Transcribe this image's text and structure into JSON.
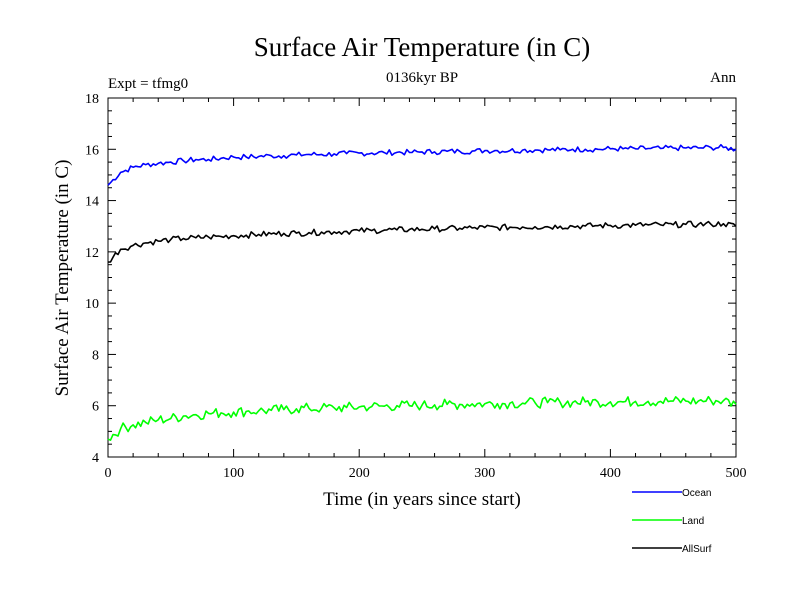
{
  "header": {
    "title": "Surface Air Temperature (in C)",
    "subtitle": "0136kyr BP",
    "left_label": "Expt = tfmg0",
    "right_label": "Ann"
  },
  "chart_data": {
    "type": "line",
    "title": "Surface Air Temperature (in C)",
    "subtitle": "0136kyr BP",
    "xlabel": "Time (in years since start)",
    "ylabel": "Surface Air Temperature (in C)",
    "xlim": [
      0,
      500
    ],
    "ylim": [
      4,
      18
    ],
    "xticks": [
      0,
      100,
      200,
      300,
      400,
      500
    ],
    "yticks": [
      4,
      6,
      8,
      10,
      12,
      14,
      16,
      18
    ],
    "grid": false,
    "legend_position": "bottom-right, below plot",
    "x": [
      0,
      10,
      20,
      30,
      40,
      50,
      60,
      70,
      80,
      90,
      100,
      110,
      120,
      130,
      140,
      150,
      160,
      170,
      180,
      190,
      200,
      210,
      220,
      230,
      240,
      250,
      260,
      270,
      280,
      290,
      300,
      310,
      320,
      330,
      340,
      350,
      360,
      370,
      380,
      390,
      400,
      410,
      420,
      430,
      440,
      450,
      460,
      470,
      480,
      490,
      500
    ],
    "series": [
      {
        "name": "Ocean",
        "color": "#0000ff",
        "values": [
          14.6,
          15.1,
          15.3,
          15.4,
          15.45,
          15.5,
          15.55,
          15.6,
          15.6,
          15.65,
          15.7,
          15.7,
          15.72,
          15.75,
          15.75,
          15.78,
          15.8,
          15.8,
          15.82,
          15.83,
          15.85,
          15.85,
          15.87,
          15.88,
          15.88,
          15.9,
          15.9,
          15.92,
          15.92,
          15.93,
          15.95,
          15.95,
          15.95,
          15.97,
          15.97,
          15.98,
          15.98,
          16.0,
          16.0,
          16.0,
          16.02,
          16.02,
          16.02,
          16.03,
          16.03,
          16.05,
          16.05,
          16.05,
          16.07,
          16.07,
          16.0
        ]
      },
      {
        "name": "Land",
        "color": "#00ff00",
        "values": [
          4.7,
          5.1,
          5.25,
          5.35,
          5.45,
          5.5,
          5.6,
          5.65,
          5.7,
          5.72,
          5.75,
          5.78,
          5.8,
          5.82,
          5.85,
          5.88,
          5.9,
          5.9,
          5.92,
          5.93,
          5.95,
          5.97,
          5.98,
          6.0,
          6.0,
          6.02,
          6.03,
          6.05,
          6.05,
          6.07,
          6.08,
          6.08,
          6.1,
          6.1,
          6.12,
          6.12,
          6.13,
          6.13,
          6.15,
          6.15,
          6.15,
          6.15,
          6.17,
          6.17,
          6.17,
          6.18,
          6.18,
          6.18,
          6.2,
          6.2,
          6.05
        ]
      },
      {
        "name": "AllSurf",
        "color": "#000000",
        "values": [
          11.6,
          12.1,
          12.25,
          12.35,
          12.42,
          12.48,
          12.52,
          12.55,
          12.58,
          12.6,
          12.63,
          12.65,
          12.68,
          12.7,
          12.72,
          12.73,
          12.75,
          12.77,
          12.78,
          12.8,
          12.82,
          12.83,
          12.85,
          12.86,
          12.87,
          12.88,
          12.9,
          12.9,
          12.92,
          12.93,
          12.95,
          12.95,
          12.96,
          12.97,
          12.98,
          12.98,
          13.0,
          13.0,
          13.01,
          13.02,
          13.03,
          13.03,
          13.04,
          13.05,
          13.05,
          13.06,
          13.07,
          13.07,
          13.08,
          13.1,
          13.0
        ]
      }
    ]
  }
}
